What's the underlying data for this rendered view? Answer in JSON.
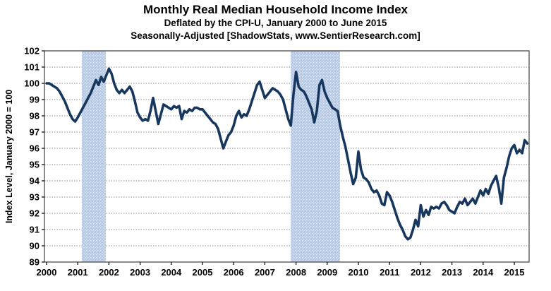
{
  "chart_data": {
    "type": "line",
    "title": "Monthly Real Median Household Income Index",
    "subtitle1": "Deflated by the CPI-U, January 2000 to June 2015",
    "subtitle2": "Seasonally-Adjusted [ShadowStats, www.SentierResearch.com]",
    "ylabel": "Index Level, January 2000 = 100",
    "ylim": [
      89,
      102
    ],
    "yticks": [
      89,
      90,
      91,
      92,
      93,
      94,
      95,
      96,
      97,
      98,
      99,
      100,
      101,
      102
    ],
    "xticks": [
      2000,
      2001,
      2002,
      2003,
      2004,
      2005,
      2006,
      2007,
      2008,
      2009,
      2010,
      2011,
      2012,
      2013,
      2014,
      2015
    ],
    "frequency": "monthly",
    "series_start": "2000-01",
    "series_end": "2015-06",
    "series_name": "Real Median Household Income Index",
    "values": [
      100.0,
      100.0,
      99.9,
      99.8,
      99.7,
      99.5,
      99.2,
      98.9,
      98.5,
      98.1,
      97.8,
      97.65,
      97.9,
      98.2,
      98.5,
      98.8,
      99.1,
      99.4,
      99.8,
      100.2,
      99.9,
      100.4,
      100.1,
      100.5,
      100.9,
      100.6,
      100.0,
      99.6,
      99.4,
      99.6,
      99.4,
      99.6,
      99.8,
      99.5,
      98.9,
      98.2,
      97.9,
      97.7,
      97.8,
      97.7,
      98.3,
      99.1,
      98.3,
      97.5,
      98.1,
      98.7,
      98.6,
      98.5,
      98.4,
      98.6,
      98.5,
      98.6,
      97.8,
      98.3,
      98.2,
      98.4,
      98.3,
      98.5,
      98.5,
      98.4,
      98.4,
      98.2,
      98.0,
      97.8,
      97.6,
      97.5,
      97.2,
      96.6,
      96.0,
      96.4,
      96.8,
      97.0,
      97.4,
      98.0,
      98.3,
      97.9,
      98.1,
      98.0,
      98.4,
      98.9,
      99.4,
      99.9,
      100.1,
      99.6,
      99.1,
      99.3,
      99.5,
      99.7,
      99.6,
      99.5,
      99.3,
      99.0,
      98.4,
      97.8,
      97.4,
      99.3,
      100.7,
      99.8,
      99.6,
      99.5,
      99.2,
      98.8,
      98.4,
      97.6,
      98.3,
      99.9,
      100.2,
      99.5,
      99.1,
      98.8,
      98.5,
      98.4,
      98.3,
      97.4,
      96.7,
      96.1,
      95.3,
      94.5,
      93.8,
      94.2,
      95.8,
      94.7,
      94.2,
      94.1,
      93.9,
      93.5,
      93.3,
      93.4,
      93.1,
      92.6,
      92.5,
      93.3,
      93.1,
      92.7,
      92.2,
      91.7,
      91.3,
      91.0,
      90.6,
      90.4,
      90.5,
      91.0,
      91.6,
      91.2,
      92.5,
      91.8,
      92.2,
      91.9,
      92.4,
      92.3,
      92.4,
      92.3,
      92.6,
      92.7,
      92.5,
      92.2,
      92.1,
      92.0,
      92.4,
      92.7,
      92.6,
      92.9,
      92.5,
      92.7,
      92.9,
      92.6,
      93.0,
      93.4,
      93.1,
      93.5,
      93.2,
      93.7,
      94.0,
      94.3,
      93.6,
      92.6,
      94.2,
      94.8,
      95.5,
      96.0,
      96.2,
      95.7,
      95.9,
      95.7,
      96.5,
      96.3
    ],
    "recession_bands": [
      {
        "from": 2001.13,
        "to": 2001.9
      },
      {
        "from": 2007.83,
        "to": 2009.41
      }
    ],
    "line_color": "#17375E",
    "band_color": "#B3C8E6",
    "band_dot_color": "#D9E4F4",
    "grid_color": "#8C8C8C",
    "border_color": "#3F3F3F",
    "text_color": "#000000",
    "grid": true,
    "legend": "none"
  }
}
